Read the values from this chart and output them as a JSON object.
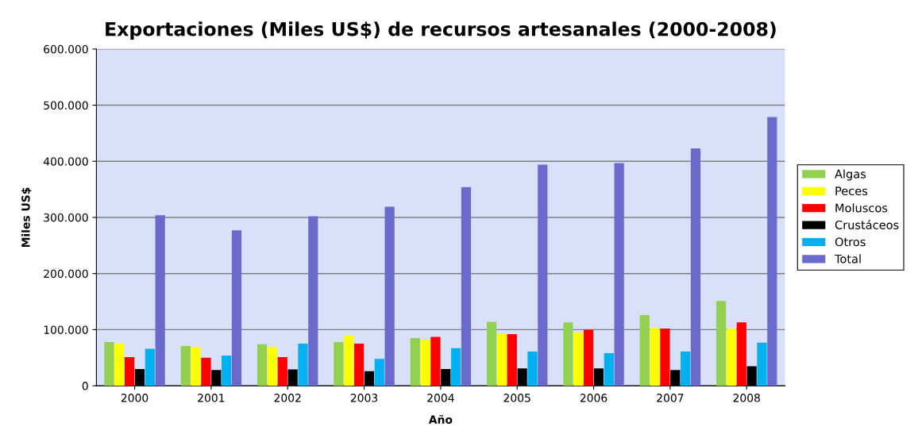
{
  "chart_data": {
    "type": "bar",
    "title": "Exportaciones (Miles US$) de recursos artesanales (2000-2008)",
    "xlabel": "Año",
    "ylabel": "Miles US$",
    "categories": [
      "2000",
      "2001",
      "2002",
      "2003",
      "2004",
      "2005",
      "2006",
      "2007",
      "2008"
    ],
    "series": [
      {
        "name": "Algas",
        "color": "#92d050",
        "values": [
          78000,
          71000,
          74000,
          78000,
          85000,
          114000,
          113000,
          126000,
          151000
        ]
      },
      {
        "name": "Peces",
        "color": "#ffff00",
        "values": [
          76000,
          69000,
          69000,
          90000,
          82000,
          92000,
          95000,
          103000,
          102000
        ]
      },
      {
        "name": "Moluscos",
        "color": "#ff0000",
        "values": [
          51000,
          50000,
          51000,
          75000,
          87000,
          92000,
          100000,
          102000,
          113000
        ]
      },
      {
        "name": "Crustáceos",
        "color": "#000000",
        "values": [
          30000,
          28000,
          29000,
          26000,
          30000,
          31000,
          31000,
          28000,
          35000
        ]
      },
      {
        "name": "Otros",
        "color": "#00b0f0",
        "values": [
          66000,
          54000,
          75000,
          48000,
          67000,
          61000,
          58000,
          61000,
          77000
        ]
      },
      {
        "name": "Total",
        "color": "#6a6acd",
        "values": [
          304000,
          277000,
          302000,
          319000,
          354000,
          394000,
          397000,
          423000,
          479000
        ]
      }
    ],
    "ylim": [
      0,
      600000
    ],
    "yticks": [
      0,
      {
        "value": 100000,
        "label": "100.000"
      },
      {
        "value": 200000,
        "label": "200.000"
      },
      {
        "value": 300000,
        "label": "300.000"
      },
      {
        "value": 400000,
        "label": "400.000"
      },
      {
        "value": 500000,
        "label": "500.000"
      },
      {
        "value": 600000,
        "label": "600.000"
      }
    ],
    "grid": "y",
    "legend": "right"
  }
}
